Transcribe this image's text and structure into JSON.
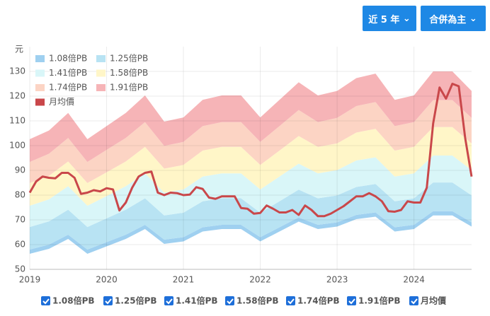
{
  "controls": {
    "range": "近 5 年",
    "basis": "合併為主"
  },
  "chart_data": {
    "type": "area",
    "y_unit": "元",
    "xlim": [
      2019,
      2024.75
    ],
    "xticks": [
      2019,
      2020,
      2021,
      2022,
      2023,
      2024
    ],
    "ylim": [
      50,
      140
    ],
    "yticks": [
      50,
      60,
      70,
      80,
      90,
      100,
      110,
      120,
      130
    ],
    "grid": true,
    "series": [
      {
        "name": "1.08倍PB",
        "color": "#9fd0f0",
        "x": [
          2019,
          2019.25,
          2019.5,
          2019.75,
          2020,
          2020.25,
          2020.5,
          2020.75,
          2021,
          2021.25,
          2021.5,
          2021.75,
          2022,
          2022.25,
          2022.5,
          2022.75,
          2023,
          2023.25,
          2023.5,
          2023.75,
          2024,
          2024.25,
          2024.5,
          2024.75
        ],
        "values": [
          58,
          60,
          64,
          58,
          61,
          64,
          68,
          62,
          63,
          67,
          68,
          68,
          63,
          67,
          71,
          68,
          69,
          72,
          73,
          67,
          68,
          73.5,
          73.5,
          69
        ]
      },
      {
        "name": "1.25倍PB",
        "color": "#b8e3f3",
        "x": [
          2019,
          2019.25,
          2019.5,
          2019.75,
          2020,
          2020.25,
          2020.5,
          2020.75,
          2021,
          2021.25,
          2021.5,
          2021.75,
          2022,
          2022.25,
          2022.5,
          2022.75,
          2023,
          2023.25,
          2023.5,
          2023.75,
          2024,
          2024.25,
          2024.5,
          2024.75
        ],
        "values": [
          67.1,
          69.4,
          74.1,
          67.1,
          70.6,
          74.1,
          78.7,
          71.8,
          72.9,
          77.5,
          78.7,
          78.7,
          72.9,
          77.5,
          82.2,
          78.7,
          79.9,
          83.3,
          84.5,
          77.5,
          78.7,
          85.1,
          85.1,
          79.9
        ]
      },
      {
        "name": "1.41倍PB",
        "color": "#d9f6f8",
        "x": [
          2019,
          2019.25,
          2019.5,
          2019.75,
          2020,
          2020.25,
          2020.5,
          2020.75,
          2021,
          2021.25,
          2021.5,
          2021.75,
          2022,
          2022.25,
          2022.5,
          2022.75,
          2023,
          2023.25,
          2023.5,
          2023.75,
          2024,
          2024.25,
          2024.5,
          2024.75
        ],
        "values": [
          75.7,
          78.3,
          83.6,
          75.7,
          79.6,
          83.6,
          88.8,
          81.0,
          82.3,
          87.5,
          88.8,
          88.8,
          82.3,
          87.5,
          92.7,
          88.8,
          90.1,
          94.0,
          95.3,
          87.5,
          88.8,
          96.0,
          96.0,
          90.1
        ]
      },
      {
        "name": "1.58倍PB",
        "color": "#fff6c8",
        "x": [
          2019,
          2019.25,
          2019.5,
          2019.75,
          2020,
          2020.25,
          2020.5,
          2020.75,
          2021,
          2021.25,
          2021.5,
          2021.75,
          2022,
          2022.25,
          2022.5,
          2022.75,
          2023,
          2023.25,
          2023.5,
          2023.75,
          2024,
          2024.25,
          2024.5,
          2024.75
        ],
        "values": [
          84.9,
          87.8,
          93.6,
          84.9,
          89.2,
          93.6,
          99.5,
          90.7,
          92.2,
          98.0,
          99.5,
          99.5,
          92.2,
          98.0,
          103.9,
          99.5,
          100.9,
          105.3,
          106.8,
          98.0,
          99.5,
          107.5,
          107.5,
          100.9
        ]
      },
      {
        "name": "1.74倍PB",
        "color": "#fcd4c4",
        "x": [
          2019,
          2019.25,
          2019.5,
          2019.75,
          2020,
          2020.25,
          2020.5,
          2020.75,
          2021,
          2021.25,
          2021.5,
          2021.75,
          2022,
          2022.25,
          2022.5,
          2022.75,
          2023,
          2023.25,
          2023.5,
          2023.75,
          2024,
          2024.25,
          2024.5,
          2024.75
        ],
        "values": [
          93.4,
          96.7,
          103.1,
          93.4,
          98.3,
          103.1,
          109.5,
          99.9,
          101.5,
          107.9,
          109.5,
          109.5,
          101.5,
          107.9,
          114.4,
          109.5,
          111.2,
          116.0,
          117.6,
          107.9,
          109.5,
          118.4,
          118.4,
          111.2
        ]
      },
      {
        "name": "1.91倍PB",
        "color": "#f6b4b7",
        "x": [
          2019,
          2019.25,
          2019.5,
          2019.75,
          2020,
          2020.25,
          2020.5,
          2020.75,
          2021,
          2021.25,
          2021.5,
          2021.75,
          2022,
          2022.25,
          2022.5,
          2022.75,
          2023,
          2023.25,
          2023.5,
          2023.75,
          2024,
          2024.25,
          2024.5,
          2024.75
        ],
        "values": [
          102.6,
          106.1,
          113.2,
          102.6,
          107.9,
          113.2,
          120.3,
          109.7,
          111.4,
          118.5,
          120.3,
          120.3,
          111.4,
          118.5,
          125.6,
          120.3,
          122.1,
          127.3,
          129.1,
          118.5,
          120.3,
          130.0,
          130.0,
          122.1
        ]
      },
      {
        "name": "月均價",
        "type": "line",
        "color": "#c9474a",
        "x": [
          2019,
          2019.083,
          2019.167,
          2019.25,
          2019.333,
          2019.417,
          2019.5,
          2019.583,
          2019.667,
          2019.75,
          2019.833,
          2019.917,
          2020,
          2020.083,
          2020.167,
          2020.25,
          2020.333,
          2020.417,
          2020.5,
          2020.583,
          2020.667,
          2020.75,
          2020.833,
          2020.917,
          2021,
          2021.083,
          2021.167,
          2021.25,
          2021.333,
          2021.417,
          2021.5,
          2021.583,
          2021.667,
          2021.75,
          2021.833,
          2021.917,
          2022,
          2022.083,
          2022.167,
          2022.25,
          2022.333,
          2022.417,
          2022.5,
          2022.583,
          2022.667,
          2022.75,
          2022.833,
          2022.917,
          2023,
          2023.083,
          2023.167,
          2023.25,
          2023.333,
          2023.417,
          2023.5,
          2023.583,
          2023.667,
          2023.75,
          2023.833,
          2023.917,
          2024,
          2024.083,
          2024.167,
          2024.25,
          2024.333,
          2024.417,
          2024.5,
          2024.583,
          2024.667,
          2024.75
        ],
        "values": [
          81,
          85.5,
          87.5,
          87,
          86.8,
          89,
          89,
          87,
          80.5,
          81,
          82,
          81.5,
          82.8,
          82.3,
          73.8,
          77,
          83,
          87.5,
          89,
          89.5,
          81,
          80,
          81,
          80.8,
          80,
          80.2,
          83.2,
          82.5,
          79,
          78.5,
          79.5,
          79.5,
          79.5,
          74.8,
          74.5,
          72.5,
          72.8,
          75.8,
          74.5,
          73,
          73,
          74,
          72,
          75.8,
          74,
          71.5,
          71.5,
          72.5,
          74,
          75.5,
          77.5,
          79.5,
          79.5,
          80.8,
          79.5,
          77.5,
          73.5,
          73.3,
          74,
          77.5,
          77,
          77,
          83,
          109,
          123.5,
          119,
          125,
          124,
          103,
          87.5
        ]
      }
    ]
  }
}
